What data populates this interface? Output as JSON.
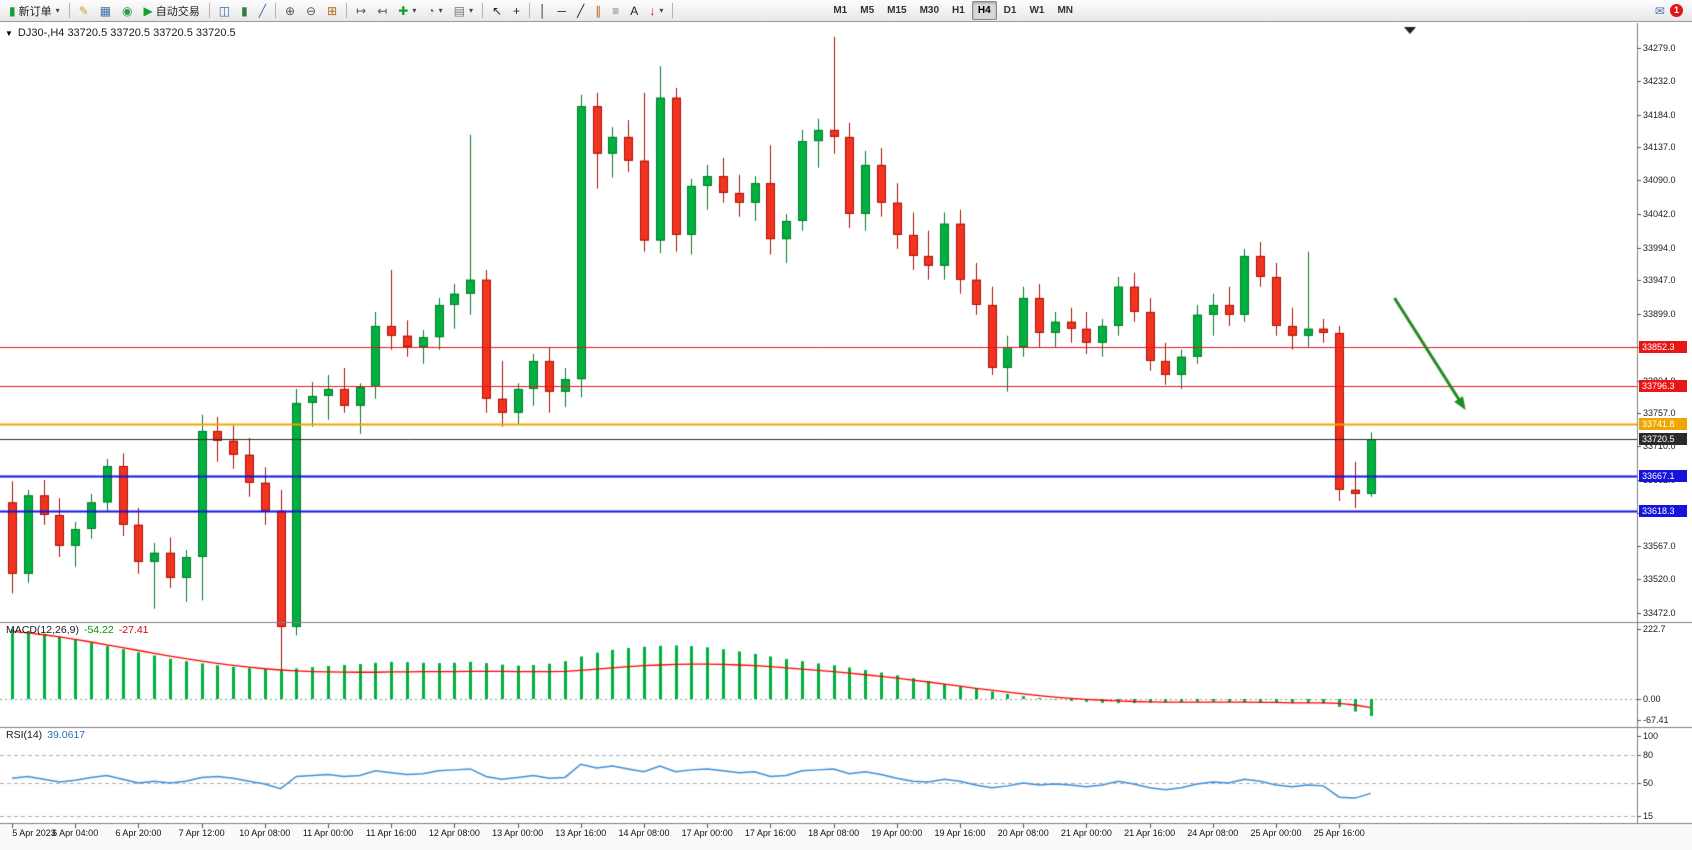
{
  "toolbar": {
    "items": [
      {
        "type": "labeled",
        "name": "new-order-button",
        "icon_name": "new-order-icon",
        "glyph": "▮",
        "color": "#12a02f",
        "label": "新订单",
        "caret": "▾"
      },
      {
        "type": "sep"
      },
      {
        "type": "icon",
        "name": "metaeditor-button",
        "icon_name": "metaeditor-icon",
        "glyph": "✎",
        "color": "#c9a227"
      },
      {
        "type": "icon",
        "name": "market-watch-button",
        "icon_name": "market-watch-icon",
        "glyph": "▦",
        "color": "#3a6ea5"
      },
      {
        "type": "icon",
        "name": "data-window-button",
        "icon_name": "data-window-icon",
        "glyph": "◉",
        "color": "#2a9d4e"
      },
      {
        "type": "labeled",
        "name": "autotrading-button",
        "icon_name": "autotrading-play-icon",
        "glyph": "▶",
        "color": "#12a02f",
        "label": "自动交易"
      },
      {
        "type": "sep"
      },
      {
        "type": "icon",
        "name": "bar-chart-button",
        "icon_name": "bar-chart-icon",
        "glyph": "◫",
        "color": "#3a6ea5"
      },
      {
        "type": "icon",
        "name": "candlestick-chart-button",
        "icon_name": "candlestick-chart-icon",
        "glyph": "▮",
        "color": "#2a7d46"
      },
      {
        "type": "icon",
        "name": "line-chart-button",
        "icon_name": "line-chart-icon",
        "glyph": "╱",
        "color": "#3a6ea5"
      },
      {
        "type": "sep"
      },
      {
        "type": "icon",
        "name": "zoom-in-button",
        "icon_name": "zoom-in-icon",
        "glyph": "⊕",
        "color": "#555555"
      },
      {
        "type": "icon",
        "name": "zoom-out-button",
        "icon_name": "zoom-out-icon",
        "glyph": "⊖",
        "color": "#555555"
      },
      {
        "type": "icon",
        "name": "tile-windows-button",
        "icon_name": "tile-windows-icon",
        "glyph": "⊞",
        "color": "#b0651a"
      },
      {
        "type": "sep"
      },
      {
        "type": "icon",
        "name": "auto-scroll-button",
        "icon_name": "auto-scroll-icon",
        "glyph": "↦",
        "color": "#555555"
      },
      {
        "type": "icon",
        "name": "chart-shift-button",
        "icon_name": "chart-shift-icon",
        "glyph": "↤",
        "color": "#555555"
      },
      {
        "type": "icon",
        "name": "indicators-button",
        "icon_name": "indicators-plus-icon",
        "glyph": "✚",
        "color": "#12a02f",
        "caret": "▾"
      },
      {
        "type": "icon",
        "name": "periods-button",
        "icon_name": "clock-icon",
        "glyph": "◔",
        "color": "#3a6ea5",
        "caret": "▾"
      },
      {
        "type": "icon",
        "name": "templates-button",
        "icon_name": "template-icon",
        "glyph": "▤",
        "color": "#777777",
        "caret": "▾"
      },
      {
        "type": "sep"
      },
      {
        "type": "icon",
        "name": "cursor-button",
        "icon_name": "cursor-icon",
        "glyph": "↖",
        "color": "#222222"
      },
      {
        "type": "icon",
        "name": "crosshair-button",
        "icon_name": "crosshair-icon",
        "glyph": "+",
        "color": "#222222"
      },
      {
        "type": "sep"
      },
      {
        "type": "icon",
        "name": "vertical-line-button",
        "icon_name": "vertical-line-icon",
        "glyph": "│",
        "color": "#222222"
      },
      {
        "type": "icon",
        "name": "horizontal-line-button",
        "icon_name": "horizontal-line-icon",
        "glyph": "─",
        "color": "#222222"
      },
      {
        "type": "icon",
        "name": "trendline-button",
        "icon_name": "trendline-icon",
        "glyph": "╱",
        "color": "#222222"
      },
      {
        "type": "icon",
        "name": "channel-button",
        "icon_name": "channel-icon",
        "glyph": "∥",
        "color": "#b0651a"
      },
      {
        "type": "icon",
        "name": "fibonacci-button",
        "icon_name": "fibonacci-icon",
        "glyph": "≡",
        "color": "#777777"
      },
      {
        "type": "icon",
        "name": "text-button",
        "icon_name": "text-icon",
        "glyph": "A",
        "color": "#222222"
      },
      {
        "type": "icon",
        "name": "arrows-button",
        "icon_name": "arrow-objects-icon",
        "glyph": "↓",
        "color": "#b02020",
        "caret": "▾"
      },
      {
        "type": "sep"
      },
      {
        "type": "tf",
        "name": "timeframe-m1-button",
        "label": "M1",
        "first": true
      },
      {
        "type": "tf",
        "name": "timeframe-m5-button",
        "label": "M5"
      },
      {
        "type": "tf",
        "name": "timeframe-m15-button",
        "label": "M15"
      },
      {
        "type": "tf",
        "name": "timeframe-m30-button",
        "label": "M30"
      },
      {
        "type": "tf",
        "name": "timeframe-h1-button",
        "label": "H1"
      },
      {
        "type": "tf",
        "name": "timeframe-h4-button",
        "label": "H4",
        "active": true
      },
      {
        "type": "tf",
        "name": "timeframe-d1-button",
        "label": "D1"
      },
      {
        "type": "tf",
        "name": "timeframe-w1-button",
        "label": "W1"
      },
      {
        "type": "tf",
        "name": "timeframe-mn-button",
        "label": "MN"
      },
      {
        "type": "spacer"
      },
      {
        "type": "icon",
        "name": "notifications-button",
        "icon_name": "mail-icon",
        "glyph": "✉",
        "color": "#4a6fa5",
        "badge": "1"
      }
    ]
  },
  "chart": {
    "title": "DJ30-,H4 33720.5 33720.5 33720.5 33720.5",
    "one_click_glyph": "▼",
    "macd_title": "MACD(12,26,9)",
    "macd_value": "-54.22",
    "macd_signal": "-27.41",
    "rsi_title": "RSI(14)",
    "rsi_value": "39.0617"
  },
  "chart_data": {
    "type": "candlestick",
    "symbol": "DJ30-",
    "timeframe": "H4",
    "current_price": 33720.5,
    "ohlc_display": [
      "33720.5",
      "33720.5",
      "33720.5",
      "33720.5"
    ],
    "price_axis_range": [
      33472,
      34279
    ],
    "price_axis_ticks": [
      "34279.0",
      "34232.0",
      "34184.0",
      "34137.0",
      "34090.0",
      "34042.0",
      "33994.0",
      "33947.0",
      "33899.0",
      "33852.0",
      "33804.0",
      "33757.0",
      "33710.0",
      "33662.0",
      "33615.0",
      "33567.0",
      "33520.0",
      "33472.0"
    ],
    "colors": {
      "up": "#00b140",
      "up_border": "#067a2b",
      "down": "#f2331f",
      "down_border": "#a81408"
    },
    "price_lines": [
      {
        "value": 33852.3,
        "label": "33852.3",
        "color": "#e81717",
        "width": 1,
        "role": "resistance"
      },
      {
        "value": 33796.3,
        "label": "33796.3",
        "color": "#e81717",
        "width": 1,
        "role": "resistance"
      },
      {
        "value": 33741.8,
        "label": "33741.8",
        "color": "#f0a500",
        "width": 2,
        "role": "pivot"
      },
      {
        "value": 33720.5,
        "label": "33720.5",
        "color": "#2b2b2b",
        "width": 1,
        "role": "current-price"
      },
      {
        "value": 33667.1,
        "label": "33667.1",
        "color": "#1414dc",
        "width": 2,
        "role": "support"
      },
      {
        "value": 33618.3,
        "label": "33618.3",
        "color": "#1414dc",
        "width": 2,
        "role": "support"
      }
    ],
    "candles": [
      [
        33630,
        33660,
        33500,
        33528
      ],
      [
        33528,
        33648,
        33515,
        33640
      ],
      [
        33640,
        33662,
        33598,
        33612
      ],
      [
        33612,
        33636,
        33552,
        33568
      ],
      [
        33568,
        33602,
        33538,
        33592
      ],
      [
        33592,
        33642,
        33578,
        33630
      ],
      [
        33630,
        33692,
        33618,
        33682
      ],
      [
        33682,
        33700,
        33582,
        33598
      ],
      [
        33598,
        33622,
        33528,
        33545
      ],
      [
        33545,
        33572,
        33478,
        33558
      ],
      [
        33558,
        33580,
        33508,
        33522
      ],
      [
        33522,
        33562,
        33488,
        33552
      ],
      [
        33552,
        33755,
        33490,
        33732
      ],
      [
        33732,
        33752,
        33688,
        33718
      ],
      [
        33718,
        33740,
        33678,
        33698
      ],
      [
        33698,
        33722,
        33638,
        33658
      ],
      [
        33658,
        33680,
        33598,
        33618
      ],
      [
        33618,
        33648,
        33382,
        33452
      ],
      [
        33452,
        33792,
        33440,
        33772
      ],
      [
        33772,
        33802,
        33738,
        33782
      ],
      [
        33782,
        33812,
        33748,
        33792
      ],
      [
        33792,
        33822,
        33758,
        33768
      ],
      [
        33768,
        33800,
        33728,
        33795
      ],
      [
        33795,
        33902,
        33778,
        33882
      ],
      [
        33882,
        33962,
        33848,
        33868
      ],
      [
        33868,
        33890,
        33838,
        33852
      ],
      [
        33852,
        33876,
        33828,
        33866
      ],
      [
        33866,
        33922,
        33848,
        33912
      ],
      [
        33912,
        33942,
        33878,
        33928
      ],
      [
        33928,
        34155,
        33898,
        33948
      ],
      [
        33948,
        33962,
        33758,
        33778
      ],
      [
        33778,
        33832,
        33738,
        33758
      ],
      [
        33758,
        33800,
        33742,
        33792
      ],
      [
        33792,
        33842,
        33768,
        33832
      ],
      [
        33832,
        33852,
        33758,
        33788
      ],
      [
        33788,
        33822,
        33766,
        33806
      ],
      [
        33806,
        34212,
        33780,
        34196
      ],
      [
        34196,
        34215,
        34078,
        34128
      ],
      [
        34128,
        34166,
        34094,
        34152
      ],
      [
        34152,
        34176,
        34102,
        34118
      ],
      [
        34118,
        34215,
        33988,
        34004
      ],
      [
        34004,
        34253,
        33986,
        34208
      ],
      [
        34208,
        34222,
        33988,
        34012
      ],
      [
        34012,
        34092,
        33984,
        34082
      ],
      [
        34082,
        34112,
        34048,
        34096
      ],
      [
        34096,
        34122,
        34058,
        34072
      ],
      [
        34072,
        34098,
        34038,
        34058
      ],
      [
        34058,
        34096,
        34032,
        34086
      ],
      [
        34086,
        34140,
        33984,
        34006
      ],
      [
        34006,
        34042,
        33972,
        34032
      ],
      [
        34032,
        34162,
        34018,
        34146
      ],
      [
        34146,
        34178,
        34108,
        34162
      ],
      [
        34162,
        34295,
        34128,
        34152
      ],
      [
        34152,
        34172,
        34022,
        34042
      ],
      [
        34042,
        34132,
        34018,
        34112
      ],
      [
        34112,
        34136,
        34038,
        34058
      ],
      [
        34058,
        34086,
        33992,
        34012
      ],
      [
        34012,
        34044,
        33962,
        33982
      ],
      [
        33982,
        34018,
        33948,
        33968
      ],
      [
        33968,
        34044,
        33948,
        34028
      ],
      [
        34028,
        34048,
        33928,
        33948
      ],
      [
        33948,
        33972,
        33898,
        33912
      ],
      [
        33912,
        33938,
        33812,
        33822
      ],
      [
        33822,
        33868,
        33788,
        33852
      ],
      [
        33852,
        33938,
        33838,
        33922
      ],
      [
        33922,
        33942,
        33852,
        33872
      ],
      [
        33872,
        33902,
        33852,
        33888
      ],
      [
        33888,
        33908,
        33858,
        33878
      ],
      [
        33878,
        33902,
        33842,
        33858
      ],
      [
        33858,
        33892,
        33838,
        33882
      ],
      [
        33882,
        33952,
        33868,
        33938
      ],
      [
        33938,
        33958,
        33888,
        33902
      ],
      [
        33902,
        33922,
        33818,
        33832
      ],
      [
        33832,
        33858,
        33798,
        33812
      ],
      [
        33812,
        33848,
        33792,
        33838
      ],
      [
        33838,
        33912,
        33828,
        33898
      ],
      [
        33898,
        33928,
        33868,
        33912
      ],
      [
        33912,
        33938,
        33882,
        33898
      ],
      [
        33898,
        33992,
        33888,
        33982
      ],
      [
        33982,
        34002,
        33938,
        33952
      ],
      [
        33952,
        33972,
        33868,
        33882
      ],
      [
        33882,
        33908,
        33848,
        33868
      ],
      [
        33868,
        33988,
        33852,
        33878
      ],
      [
        33878,
        33892,
        33858,
        33872
      ],
      [
        33872,
        33882,
        33632,
        33648
      ],
      [
        33648,
        33688,
        33622,
        33642
      ],
      [
        33642,
        33730,
        33638,
        33720.5
      ]
    ],
    "time_labels": [
      "5 Apr 2023",
      "6 Apr 04:00",
      "6 Apr 20:00",
      "7 Apr 12:00",
      "10 Apr 08:00",
      "11 Apr 00:00",
      "11 Apr 16:00",
      "12 Apr 08:00",
      "13 Apr 00:00",
      "13 Apr 16:00",
      "14 Apr 08:00",
      "17 Apr 00:00",
      "17 Apr 16:00",
      "18 Apr 08:00",
      "19 Apr 00:00",
      "19 Apr 16:00",
      "20 Apr 08:00",
      "21 Apr 00:00",
      "21 Apr 16:00",
      "24 Apr 08:00",
      "25 Apr 00:00",
      "25 Apr 16:00"
    ],
    "bars_per_label": 4,
    "annotations": [
      {
        "type": "arrow",
        "direction": "down-right",
        "color": "#228B22",
        "from_bar": 87.5,
        "from_price": 33922,
        "to_bar": 92,
        "to_price": 33762
      }
    ],
    "macd": {
      "title": "MACD(12,26,9)",
      "value": -54.22,
      "signal_value": -27.41,
      "scale_labels": [
        "222.7",
        "0.00",
        "-67.41"
      ],
      "scale_values": [
        222.7,
        0,
        -67.41
      ],
      "histogram_color": "#00b140",
      "signal_color": "#ff0000",
      "histogram": [
        222,
        215,
        207,
        198,
        188,
        178,
        168,
        158,
        148,
        138,
        128,
        120,
        113,
        107,
        102,
        98,
        95,
        94,
        97,
        101,
        105,
        108,
        111,
        115,
        118,
        117,
        115,
        114,
        115,
        118,
        114,
        109,
        106,
        108,
        112,
        120,
        135,
        147,
        156,
        162,
        166,
        169,
        170,
        168,
        164,
        158,
        151,
        143,
        135,
        127,
        120,
        113,
        107,
        100,
        92,
        84,
        75,
        66,
        57,
        48,
        40,
        32,
        24,
        16,
        9,
        3,
        -2,
        -6,
        -9,
        -12,
        -13,
        -13,
        -12,
        -11,
        -10,
        -9,
        -9,
        -10,
        -11,
        -12,
        -13,
        -13,
        -12,
        -14,
        -25,
        -40,
        -54.22
      ],
      "signal": [
        215,
        210,
        204,
        197,
        189,
        181,
        172,
        163,
        154,
        145,
        136,
        128,
        120,
        113,
        107,
        101,
        96,
        92,
        89,
        87,
        86,
        85,
        85,
        85,
        86,
        86,
        87,
        87,
        87,
        88,
        88,
        88,
        87,
        87,
        87,
        88,
        91,
        95,
        99,
        103,
        106,
        108,
        110,
        111,
        111,
        110,
        108,
        106,
        103,
        99,
        95,
        91,
        87,
        82,
        77,
        72,
        66,
        60,
        54,
        47,
        41,
        34,
        28,
        22,
        16,
        11,
        6,
        2,
        -1,
        -4,
        -6,
        -8,
        -9,
        -10,
        -10,
        -10,
        -10,
        -10,
        -10,
        -11,
        -11,
        -12,
        -12,
        -12,
        -14,
        -19,
        -27.41
      ]
    },
    "rsi": {
      "title": "RSI(14)",
      "value": 39.0617,
      "color": "#3f8fd8",
      "scale_labels": [
        "100",
        "80",
        "50",
        "15"
      ],
      "scale_values": [
        100,
        80,
        50,
        15
      ],
      "level_lines": [
        80,
        50,
        15
      ],
      "series": [
        55,
        57,
        54,
        51,
        53,
        56,
        58,
        54,
        50,
        52,
        50,
        52,
        56,
        57,
        55,
        52,
        49,
        44,
        57,
        58,
        59,
        57,
        58,
        63,
        61,
        59,
        60,
        63,
        64,
        65,
        57,
        54,
        56,
        58,
        55,
        56,
        70,
        66,
        68,
        65,
        62,
        68,
        62,
        64,
        65,
        63,
        61,
        62,
        57,
        58,
        63,
        64,
        65,
        60,
        62,
        59,
        55,
        52,
        51,
        54,
        52,
        48,
        45,
        47,
        50,
        48,
        49,
        48,
        46,
        48,
        52,
        49,
        45,
        43,
        45,
        49,
        51,
        50,
        54,
        52,
        48,
        46,
        48,
        47,
        35,
        34,
        39.06
      ]
    }
  }
}
